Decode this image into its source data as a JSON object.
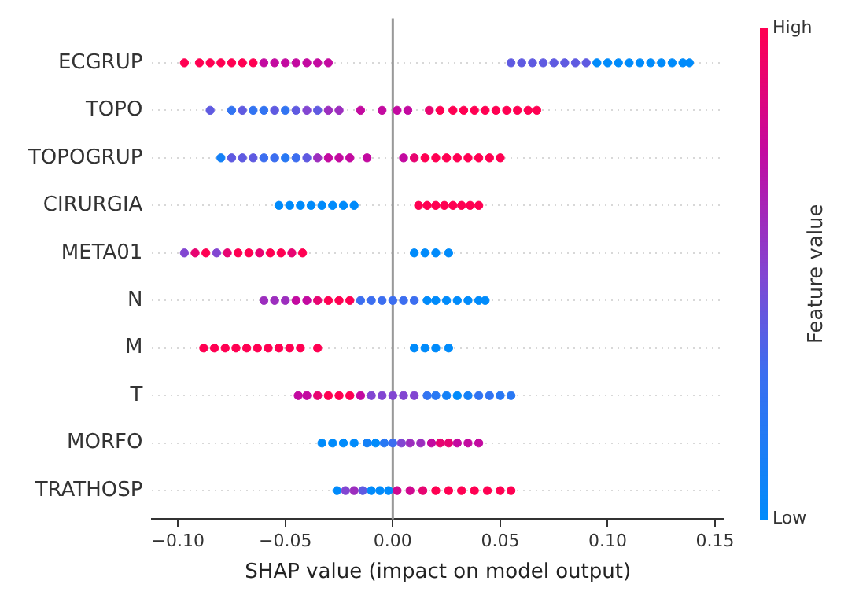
{
  "chart_data": {
    "type": "scatter",
    "orientation": "horizontal",
    "xlabel": "SHAP value (impact on model output)",
    "clabel": "Feature value",
    "categories": [
      "ECGRUP",
      "TOPO",
      "TOPOGRUP",
      "CIRURGIA",
      "META01",
      "N",
      "M",
      "T",
      "MORFO",
      "TRATHOSP"
    ],
    "xlim": [
      -0.112,
      0.154
    ],
    "xticks": [
      {
        "value": -0.1,
        "label": "−0.10"
      },
      {
        "value": -0.05,
        "label": "−0.05"
      },
      {
        "value": 0,
        "label": "0.00"
      },
      {
        "value": 0.05,
        "label": "0.05"
      },
      {
        "value": 0.1,
        "label": "0.10"
      },
      {
        "value": 0.15,
        "label": "0.15"
      }
    ],
    "clim": [
      0,
      1
    ],
    "cticks": [
      {
        "value": 0,
        "label": "Low"
      },
      {
        "value": 1,
        "label": "High"
      }
    ],
    "grid": "y",
    "marker": "circle",
    "ref_lines": [
      {
        "axis": "x",
        "value": 0,
        "color": "#999999"
      }
    ],
    "series": [
      {
        "x": [
          "ECGRUP",
          "ECGRUP",
          "ECGRUP",
          "ECGRUP",
          "ECGRUP",
          "ECGRUP",
          "ECGRUP",
          "ECGRUP",
          "ECGRUP",
          "ECGRUP",
          "ECGRUP",
          "ECGRUP",
          "ECGRUP",
          "ECGRUP",
          "ECGRUP",
          "ECGRUP",
          "ECGRUP",
          "ECGRUP",
          "ECGRUP",
          "ECGRUP",
          "ECGRUP",
          "ECGRUP",
          "ECGRUP",
          "ECGRUP",
          "ECGRUP",
          "ECGRUP",
          "ECGRUP",
          "ECGRUP",
          "ECGRUP",
          "ECGRUP",
          "ECGRUP",
          "ECGRUP"
        ],
        "values": [
          -0.097,
          -0.09,
          -0.085,
          -0.08,
          -0.075,
          -0.07,
          -0.065,
          -0.06,
          -0.055,
          -0.05,
          -0.045,
          -0.04,
          -0.035,
          -0.03,
          0.055,
          0.06,
          0.065,
          0.07,
          0.075,
          0.08,
          0.085,
          0.09,
          0.095,
          0.1,
          0.105,
          0.11,
          0.115,
          0.12,
          0.125,
          0.13,
          0.135,
          0.138
        ],
        "cvalues": [
          1,
          1,
          1,
          1,
          1,
          1,
          1,
          0.75,
          0.75,
          0.75,
          0.75,
          0.75,
          0.75,
          0.75,
          0.4,
          0.4,
          0.4,
          0.4,
          0.4,
          0.4,
          0.4,
          0.4,
          0,
          0,
          0,
          0,
          0,
          0,
          0,
          0,
          0,
          0
        ],
        "colors": [
          "#ff0052",
          "#ff0052",
          "#ff0052",
          "#ff0052",
          "#ff0052",
          "#ff0052",
          "#ff0052",
          "#c30aa0",
          "#c30aa0",
          "#c30aa0",
          "#c30aa0",
          "#c30aa0",
          "#c30aa0",
          "#c30aa0",
          "#5f5ae1",
          "#5f5ae1",
          "#5f5ae1",
          "#5f5ae1",
          "#5f5ae1",
          "#5f5ae1",
          "#5f5ae1",
          "#5f5ae1",
          "#008bfb",
          "#008bfb",
          "#008bfb",
          "#008bfb",
          "#008bfb",
          "#008bfb",
          "#008bfb",
          "#008bfb",
          "#008bfb",
          "#008bfb"
        ]
      },
      {
        "x": [
          "TOPO",
          "TOPO",
          "TOPO",
          "TOPO",
          "TOPO",
          "TOPO",
          "TOPO",
          "TOPO",
          "TOPO",
          "TOPO",
          "TOPO",
          "TOPO",
          "TOPO",
          "TOPO",
          "TOPO",
          "TOPO",
          "TOPO",
          "TOPO",
          "TOPO",
          "TOPO",
          "TOPO",
          "TOPO",
          "TOPO",
          "TOPO",
          "TOPO",
          "TOPO",
          "TOPO"
        ],
        "values": [
          -0.085,
          -0.075,
          -0.07,
          -0.065,
          -0.06,
          -0.055,
          -0.05,
          -0.045,
          -0.04,
          -0.035,
          -0.03,
          -0.025,
          -0.015,
          -0.005,
          0.002,
          0.007,
          0.017,
          0.022,
          0.028,
          0.033,
          0.038,
          0.043,
          0.048,
          0.053,
          0.058,
          0.063,
          0.067
        ],
        "cvalues": [
          0.4,
          0.25,
          0.4,
          0.25,
          0.25,
          0.4,
          0.25,
          0.4,
          0.5,
          0.4,
          0.6,
          0.6,
          0.75,
          0.75,
          0.75,
          0.75,
          0.9,
          1,
          1,
          1,
          1,
          1,
          1,
          1,
          1,
          1,
          1
        ],
        "colors": [
          "#5f5ae1",
          "#3274f2",
          "#5f5ae1",
          "#3274f2",
          "#3274f2",
          "#5f5ae1",
          "#3274f2",
          "#5f5ae1",
          "#8246d2",
          "#5f5ae1",
          "#9c2ebe",
          "#9c2ebe",
          "#c30aa0",
          "#c30aa0",
          "#c30aa0",
          "#c30aa0",
          "#e70471",
          "#ff0052",
          "#ff0052",
          "#ff0052",
          "#ff0052",
          "#ff0052",
          "#ff0052",
          "#ff0052",
          "#ff0052",
          "#ff0052",
          "#ff0052"
        ]
      },
      {
        "x": [
          "TOPOGRUP",
          "TOPOGRUP",
          "TOPOGRUP",
          "TOPOGRUP",
          "TOPOGRUP",
          "TOPOGRUP",
          "TOPOGRUP",
          "TOPOGRUP",
          "TOPOGRUP",
          "TOPOGRUP",
          "TOPOGRUP",
          "TOPOGRUP",
          "TOPOGRUP",
          "TOPOGRUP",
          "TOPOGRUP",
          "TOPOGRUP",
          "TOPOGRUP",
          "TOPOGRUP",
          "TOPOGRUP",
          "TOPOGRUP",
          "TOPOGRUP",
          "TOPOGRUP",
          "TOPOGRUP",
          "TOPOGRUP"
        ],
        "values": [
          -0.08,
          -0.075,
          -0.07,
          -0.065,
          -0.06,
          -0.055,
          -0.05,
          -0.045,
          -0.04,
          -0.035,
          -0.03,
          -0.025,
          -0.02,
          -0.012,
          0.005,
          0.01,
          0.015,
          0.02,
          0.025,
          0.03,
          0.035,
          0.04,
          0.045,
          0.05
        ],
        "cvalues": [
          0.1,
          0.4,
          0.4,
          0.4,
          0.3,
          0.3,
          0.2,
          0.3,
          0.4,
          0.6,
          0.75,
          0.75,
          0.75,
          0.75,
          0.75,
          0.9,
          1,
          1,
          1,
          1,
          1,
          1,
          1,
          1
        ],
        "colors": [
          "#1481f7",
          "#5f5ae1",
          "#5f5ae1",
          "#5f5ae1",
          "#3c6ef0",
          "#3c6ef0",
          "#2878f4",
          "#3c6ef0",
          "#5f5ae1",
          "#9c2ebe",
          "#c30aa0",
          "#c30aa0",
          "#c30aa0",
          "#c30aa0",
          "#c30aa0",
          "#e70471",
          "#ff0052",
          "#ff0052",
          "#ff0052",
          "#ff0052",
          "#ff0052",
          "#ff0052",
          "#ff0052",
          "#ff0052"
        ]
      },
      {
        "x": [
          "CIRURGIA",
          "CIRURGIA",
          "CIRURGIA",
          "CIRURGIA",
          "CIRURGIA",
          "CIRURGIA",
          "CIRURGIA",
          "CIRURGIA",
          "CIRURGIA",
          "CIRURGIA",
          "CIRURGIA",
          "CIRURGIA",
          "CIRURGIA",
          "CIRURGIA",
          "CIRURGIA",
          "CIRURGIA"
        ],
        "values": [
          -0.053,
          -0.048,
          -0.043,
          -0.038,
          -0.033,
          -0.028,
          -0.023,
          -0.018,
          0.012,
          0.016,
          0.02,
          0.024,
          0.028,
          0.032,
          0.036,
          0.04
        ],
        "cvalues": [
          0,
          0,
          0,
          0,
          0,
          0,
          0,
          0,
          1,
          1,
          1,
          1,
          1,
          1,
          1,
          1
        ],
        "colors": [
          "#008bfb",
          "#008bfb",
          "#008bfb",
          "#008bfb",
          "#008bfb",
          "#008bfb",
          "#008bfb",
          "#008bfb",
          "#ff0052",
          "#ff0052",
          "#ff0052",
          "#ff0052",
          "#ff0052",
          "#ff0052",
          "#ff0052",
          "#ff0052"
        ]
      },
      {
        "x": [
          "META01",
          "META01",
          "META01",
          "META01",
          "META01",
          "META01",
          "META01",
          "META01",
          "META01",
          "META01",
          "META01",
          "META01",
          "META01",
          "META01",
          "META01",
          "META01"
        ],
        "values": [
          -0.097,
          -0.092,
          -0.087,
          -0.082,
          -0.077,
          -0.072,
          -0.067,
          -0.062,
          -0.057,
          -0.052,
          -0.047,
          -0.042,
          0.01,
          0.015,
          0.02,
          0.026
        ],
        "cvalues": [
          0.5,
          0.9,
          1,
          0.5,
          0.9,
          1,
          1,
          0.9,
          1,
          1,
          0.9,
          1,
          0,
          0,
          0,
          0
        ],
        "colors": [
          "#8246d2",
          "#e70471",
          "#ff0052",
          "#8246d2",
          "#e70471",
          "#ff0052",
          "#ff0052",
          "#e70471",
          "#ff0052",
          "#ff0052",
          "#e70471",
          "#ff0052",
          "#008bfb",
          "#008bfb",
          "#008bfb",
          "#008bfb"
        ]
      },
      {
        "x": [
          "N",
          "N",
          "N",
          "N",
          "N",
          "N",
          "N",
          "N",
          "N",
          "N",
          "N",
          "N",
          "N",
          "N",
          "N",
          "N",
          "N",
          "N",
          "N",
          "N",
          "N",
          "N"
        ],
        "values": [
          -0.06,
          -0.055,
          -0.05,
          -0.045,
          -0.04,
          -0.035,
          -0.03,
          -0.025,
          -0.02,
          -0.015,
          -0.01,
          -0.005,
          0,
          0.005,
          0.01,
          0.016,
          0.02,
          0.025,
          0.03,
          0.035,
          0.04,
          0.043
        ],
        "cvalues": [
          0.6,
          0.6,
          0.6,
          0.75,
          0.75,
          0.9,
          1,
          1,
          1,
          0.3,
          0.3,
          0.3,
          0.3,
          0.3,
          0.3,
          0,
          0,
          0,
          0,
          0,
          0,
          0
        ],
        "colors": [
          "#9c2ebe",
          "#9c2ebe",
          "#9c2ebe",
          "#c30aa0",
          "#c30aa0",
          "#e70471",
          "#ff0052",
          "#ff0052",
          "#ff0052",
          "#3c6ef0",
          "#3c6ef0",
          "#3c6ef0",
          "#3c6ef0",
          "#3c6ef0",
          "#3c6ef0",
          "#008bfb",
          "#008bfb",
          "#008bfb",
          "#008bfb",
          "#008bfb",
          "#008bfb",
          "#008bfb"
        ]
      },
      {
        "x": [
          "M",
          "M",
          "M",
          "M",
          "M",
          "M",
          "M",
          "M",
          "M",
          "M",
          "M",
          "M",
          "M",
          "M",
          "M"
        ],
        "values": [
          -0.088,
          -0.083,
          -0.078,
          -0.073,
          -0.068,
          -0.063,
          -0.058,
          -0.053,
          -0.048,
          -0.043,
          -0.035,
          0.01,
          0.015,
          0.02,
          0.026
        ],
        "cvalues": [
          1,
          1,
          1,
          1,
          1,
          1,
          1,
          1,
          1,
          1,
          1,
          0,
          0,
          0,
          0
        ],
        "colors": [
          "#ff0052",
          "#ff0052",
          "#ff0052",
          "#ff0052",
          "#ff0052",
          "#ff0052",
          "#ff0052",
          "#ff0052",
          "#ff0052",
          "#ff0052",
          "#ff0052",
          "#008bfb",
          "#008bfb",
          "#008bfb",
          "#008bfb"
        ]
      },
      {
        "x": [
          "T",
          "T",
          "T",
          "T",
          "T",
          "T",
          "T",
          "T",
          "T",
          "T",
          "T",
          "T",
          "T",
          "T",
          "T",
          "T",
          "T",
          "T",
          "T",
          "T",
          "T"
        ],
        "values": [
          -0.044,
          -0.04,
          -0.035,
          -0.03,
          -0.025,
          -0.02,
          -0.015,
          -0.01,
          -0.005,
          0,
          0.005,
          0.01,
          0.016,
          0.02,
          0.025,
          0.03,
          0.035,
          0.04,
          0.045,
          0.05,
          0.055
        ],
        "cvalues": [
          0.75,
          0.75,
          0.9,
          1,
          1,
          1,
          0.75,
          0.5,
          0.5,
          0.5,
          0.5,
          0.5,
          0.25,
          0.2,
          0.1,
          0,
          0.1,
          0.25,
          0.25,
          0.2,
          0.2
        ],
        "colors": [
          "#c30aa0",
          "#c30aa0",
          "#e70471",
          "#ff0052",
          "#ff0052",
          "#ff0052",
          "#c30aa0",
          "#8246d2",
          "#8246d2",
          "#8246d2",
          "#8246d2",
          "#8246d2",
          "#3274f2",
          "#2878f4",
          "#1481f7",
          "#008bfb",
          "#1481f7",
          "#3274f2",
          "#3274f2",
          "#2878f4",
          "#2878f4"
        ]
      },
      {
        "x": [
          "MORFO",
          "MORFO",
          "MORFO",
          "MORFO",
          "MORFO",
          "MORFO",
          "MORFO",
          "MORFO",
          "MORFO",
          "MORFO",
          "MORFO",
          "MORFO",
          "MORFO",
          "MORFO",
          "MORFO",
          "MORFO",
          "MORFO"
        ],
        "values": [
          -0.033,
          -0.028,
          -0.023,
          -0.018,
          -0.012,
          -0.008,
          -0.004,
          0,
          0.004,
          0.008,
          0.013,
          0.018,
          0.022,
          0.026,
          0.03,
          0.035,
          0.04
        ],
        "cvalues": [
          0,
          0,
          0,
          0,
          0.1,
          0,
          0.2,
          0.3,
          0.5,
          0.6,
          0.6,
          0.75,
          0.9,
          0.9,
          0.75,
          0.75,
          0.75
        ],
        "colors": [
          "#008bfb",
          "#008bfb",
          "#008bfb",
          "#008bfb",
          "#1481f7",
          "#008bfb",
          "#2878f4",
          "#3c6ef0",
          "#8246d2",
          "#9c2ebe",
          "#9c2ebe",
          "#c30aa0",
          "#e70471",
          "#e70471",
          "#c30aa0",
          "#c30aa0",
          "#c30aa0"
        ]
      },
      {
        "x": [
          "TRATHOSP",
          "TRATHOSP",
          "TRATHOSP",
          "TRATHOSP",
          "TRATHOSP",
          "TRATHOSP",
          "TRATHOSP",
          "TRATHOSP",
          "TRATHOSP",
          "TRATHOSP",
          "TRATHOSP",
          "TRATHOSP",
          "TRATHOSP",
          "TRATHOSP",
          "TRATHOSP",
          "TRATHOSP",
          "TRATHOSP"
        ],
        "values": [
          -0.026,
          -0.022,
          -0.018,
          -0.014,
          -0.01,
          -0.006,
          -0.002,
          0.002,
          0.008,
          0.014,
          0.02,
          0.026,
          0.032,
          0.038,
          0.044,
          0.05,
          0.055
        ],
        "cvalues": [
          0,
          0.5,
          0.6,
          0.4,
          0,
          0,
          0,
          0.8,
          0.8,
          0.9,
          1,
          1,
          1,
          1,
          1,
          1,
          1
        ],
        "colors": [
          "#008bfb",
          "#8246d2",
          "#9c2ebe",
          "#5f5ae1",
          "#008bfb",
          "#008bfb",
          "#008bfb",
          "#cf0890",
          "#cf0890",
          "#e70471",
          "#ff0052",
          "#ff0052",
          "#ff0052",
          "#ff0052",
          "#ff0052",
          "#ff0052",
          "#ff0052"
        ]
      }
    ]
  }
}
